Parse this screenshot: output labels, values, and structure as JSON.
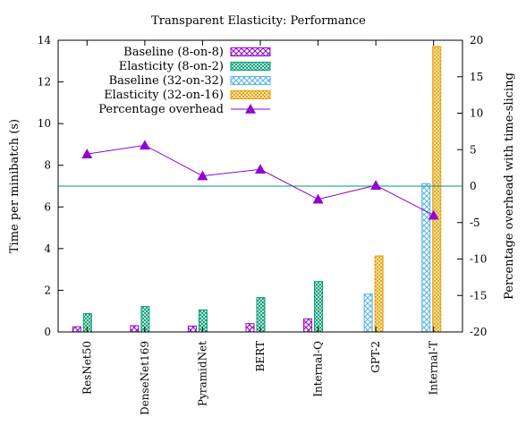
{
  "chart_data": {
    "type": "bar",
    "title": "Transparent Elasticity: Performance",
    "ylabel": "Time per minibatch (s)",
    "y2label": "Percentage overhead with time-slicing",
    "xlabel": "",
    "ylim": [
      0,
      14
    ],
    "y2lim": [
      -20,
      20
    ],
    "y_ticks": [
      "0",
      "2",
      "4",
      "6",
      "8",
      "10",
      "12",
      "14"
    ],
    "y2_ticks": [
      "-20",
      "-15",
      "-10",
      "-5",
      "0",
      "5",
      "10",
      "15",
      "20"
    ],
    "grid": false,
    "legend_position": "top-right (inside)",
    "reference_line": {
      "axis": "y2",
      "value": 0,
      "color": "#009e73"
    },
    "categories": [
      "ResNet50",
      "DenseNet169",
      "PyramidNet",
      "BERT",
      "Internal-Q",
      "GPT-2",
      "Internal-T"
    ],
    "series": [
      {
        "name": "Baseline (8-on-8)",
        "color": "#9400d3",
        "pattern": "crosshatch",
        "axis": "y",
        "values": [
          0.25,
          0.3,
          0.28,
          0.4,
          0.63,
          null,
          null
        ]
      },
      {
        "name": "Elasticity (8-on-2)",
        "color": "#009e73",
        "pattern": "dense-crosshatch",
        "axis": "y",
        "values": [
          0.88,
          1.22,
          1.06,
          1.65,
          2.42,
          null,
          null
        ]
      },
      {
        "name": "Baseline (32-on-32)",
        "color": "#56b4e9",
        "pattern": "crosshatch",
        "axis": "y",
        "values": [
          null,
          null,
          null,
          null,
          null,
          1.82,
          7.12
        ]
      },
      {
        "name": "Elasticity (32-on-16)",
        "color": "#e69f00",
        "pattern": "dense-crosshatch",
        "axis": "y",
        "values": [
          null,
          null,
          null,
          null,
          null,
          3.65,
          13.7
        ]
      },
      {
        "name": "Percentage overhead",
        "color": "#9400d3",
        "type": "line",
        "marker": "triangle",
        "axis": "y2",
        "values": [
          4.4,
          5.6,
          1.4,
          2.3,
          -1.8,
          0.1,
          -4.0
        ]
      }
    ]
  }
}
